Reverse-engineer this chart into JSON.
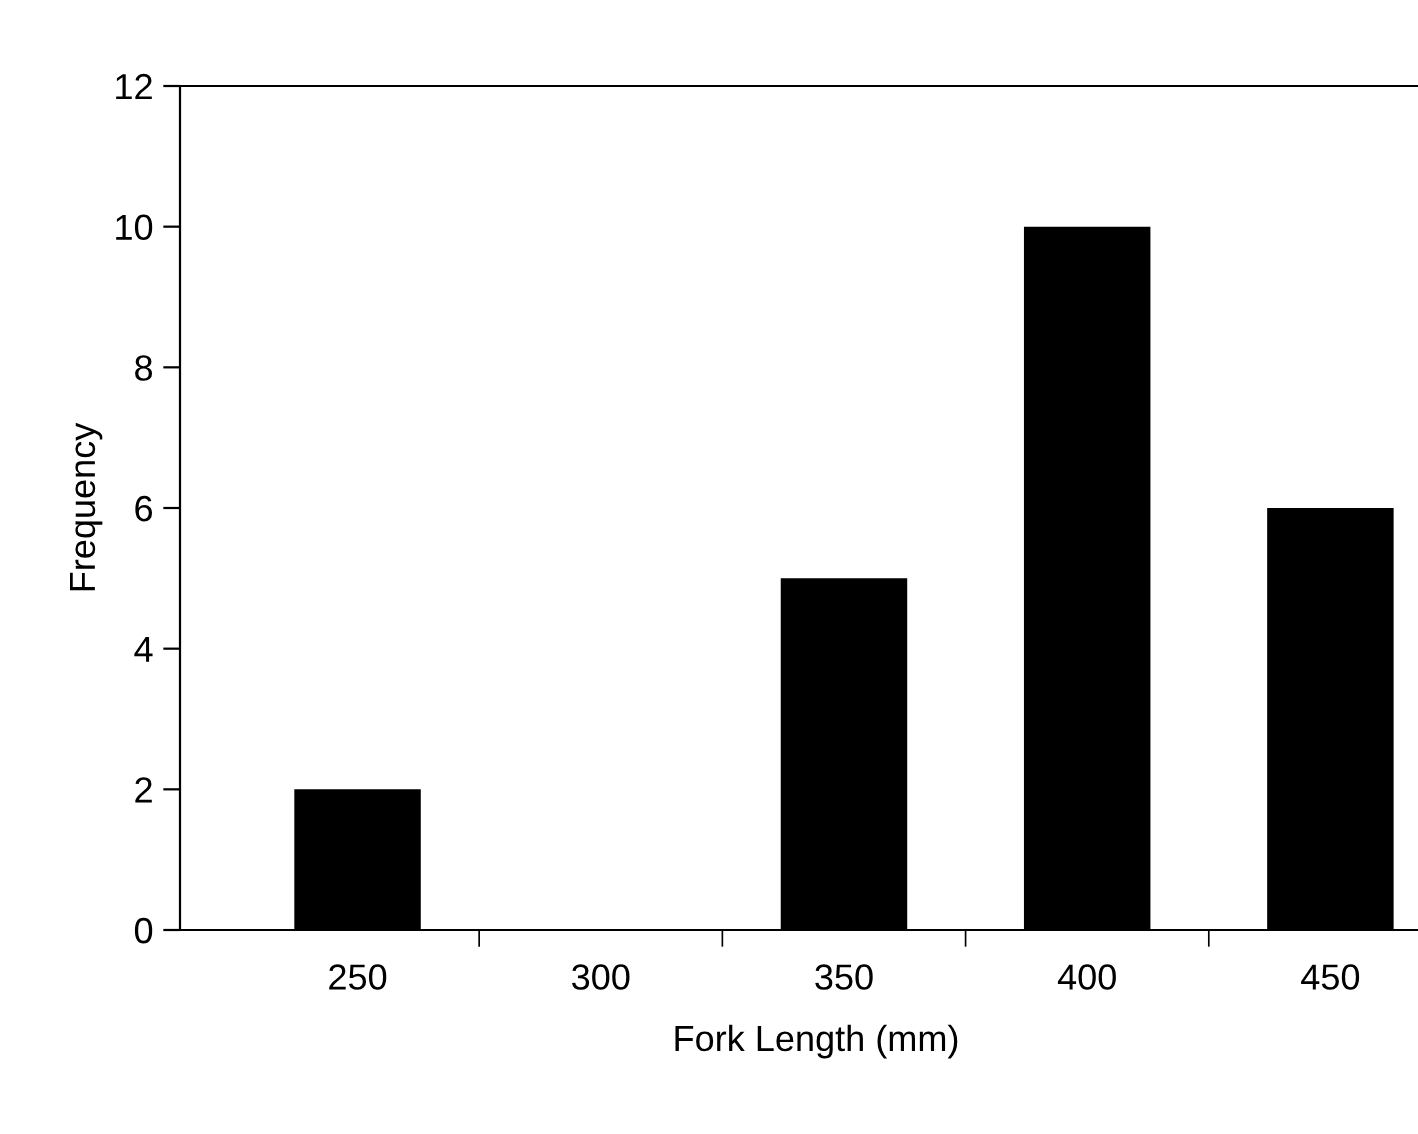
{
  "chart_data": {
    "type": "bar",
    "xlabel": "Fork Length (mm)",
    "ylabel": "Frequency",
    "categories": [
      "250",
      "300",
      "350",
      "400",
      "450"
    ],
    "values": [
      2,
      0,
      5,
      10,
      6
    ],
    "color": "#000000",
    "ylim": [
      0,
      12
    ],
    "yticks": [
      0,
      2,
      4,
      6,
      8,
      10,
      12
    ],
    "grid": false,
    "legend": false
  }
}
